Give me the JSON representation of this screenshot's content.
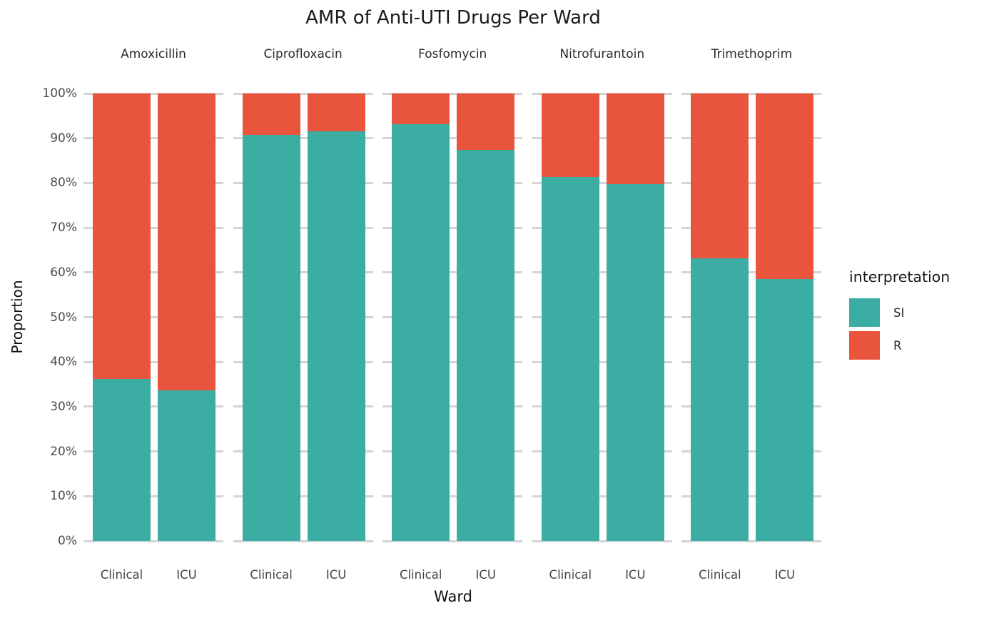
{
  "title": "AMR of Anti-UTI Drugs Per Ward",
  "axes": {
    "y_title": "Proportion",
    "x_title": "Ward",
    "y_ticks": [
      "100%",
      "90%",
      "80%",
      "70%",
      "60%",
      "50%",
      "40%",
      "30%",
      "20%",
      "10%",
      "0%"
    ]
  },
  "legend": {
    "title": "interpretation",
    "items": [
      {
        "label": "SI",
        "color": "#3BADA3"
      },
      {
        "label": "R",
        "color": "#E9543D"
      }
    ]
  },
  "colors": {
    "si": "#3BADA3",
    "r": "#E9543D",
    "gridline": "#D4D4D4"
  },
  "chart_data": {
    "type": "bar",
    "variant": "stacked-percent",
    "title": "AMR of Anti-UTI Drugs Per Ward",
    "xlabel": "Ward",
    "ylabel": "Proportion",
    "ylim": [
      0,
      100
    ],
    "y_tick_step": 10,
    "y_tick_format": "percent",
    "grid": "horizontal-major-only",
    "legend_position": "right",
    "legend_title": "interpretation",
    "categories": [
      "Clinical",
      "ICU"
    ],
    "series_names": [
      "SI",
      "R"
    ],
    "series_colors": {
      "SI": "#3BADA3",
      "R": "#E9543D"
    },
    "facets": [
      {
        "name": "Amoxicillin",
        "series": [
          {
            "name": "SI",
            "values": [
              36.2,
              33.6
            ]
          },
          {
            "name": "R",
            "values": [
              63.8,
              66.4
            ]
          }
        ]
      },
      {
        "name": "Ciprofloxacin",
        "series": [
          {
            "name": "SI",
            "values": [
              90.8,
              91.6
            ]
          },
          {
            "name": "R",
            "values": [
              9.2,
              8.4
            ]
          }
        ]
      },
      {
        "name": "Fosfomycin",
        "series": [
          {
            "name": "SI",
            "values": [
              93.1,
              87.4
            ]
          },
          {
            "name": "R",
            "values": [
              6.9,
              12.6
            ]
          }
        ]
      },
      {
        "name": "Nitrofurantoin",
        "series": [
          {
            "name": "SI",
            "values": [
              81.4,
              79.7
            ]
          },
          {
            "name": "R",
            "values": [
              18.6,
              20.3
            ]
          }
        ]
      },
      {
        "name": "Trimethoprim",
        "series": [
          {
            "name": "SI",
            "values": [
              63.1,
              58.5
            ]
          },
          {
            "name": "R",
            "values": [
              36.9,
              41.5
            ]
          }
        ]
      }
    ]
  }
}
